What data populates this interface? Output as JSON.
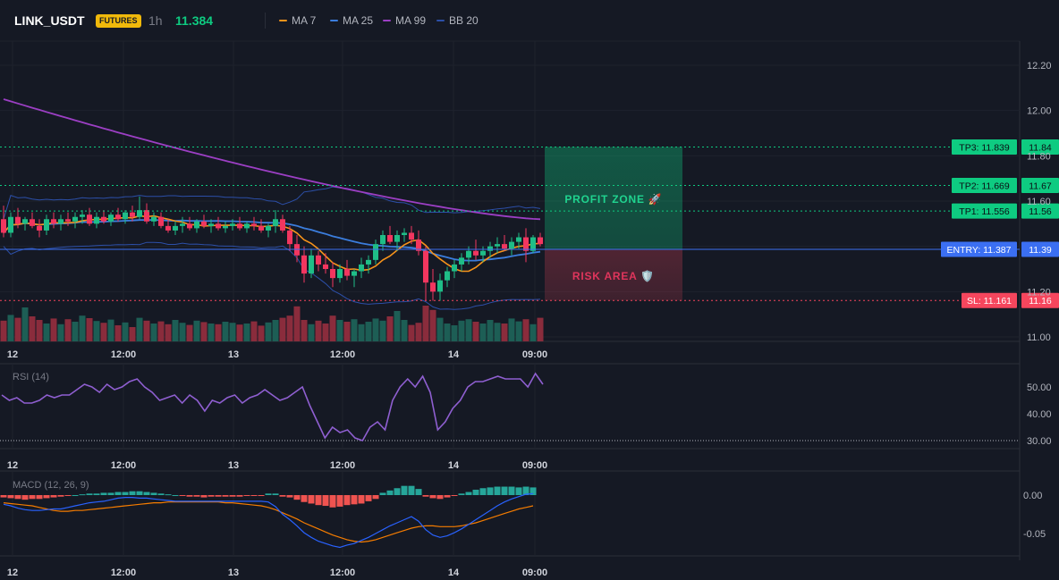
{
  "header": {
    "symbol": "LINK_USDT",
    "badge": "FUTURES",
    "timeframe": "1h",
    "price": "11.384",
    "legend": [
      {
        "name": "MA 7",
        "color": "#f7931a"
      },
      {
        "name": "MA 25",
        "color": "#3b7ddd"
      },
      {
        "name": "MA 99",
        "color": "#9c3fc4"
      },
      {
        "name": "BB 20",
        "color": "#2c4fa8"
      }
    ]
  },
  "colors": {
    "up": "#1fbd87",
    "down": "#f2365f",
    "vol_up": "#1d5e55",
    "vol_down": "#8a2c3c",
    "tp": "#0ecb81",
    "sl": "#f6465d",
    "entry": "#3b6ff2",
    "rsi": "#8f5fd1",
    "macd": "#2962ff",
    "signal": "#f57c00",
    "hist_up": "#26a69a",
    "hist_down": "#ef5350"
  },
  "zones": {
    "profit_label": "PROFIT ZONE 🚀",
    "risk_label": "RISK AREA 🛡️"
  },
  "levels": [
    {
      "name": "TP3",
      "label": "TP3: 11.839",
      "axis": "11.84",
      "value": 11.839,
      "kind": "tp"
    },
    {
      "name": "TP2",
      "label": "TP2: 11.669",
      "axis": "11.67",
      "value": 11.669,
      "kind": "tp"
    },
    {
      "name": "TP1",
      "label": "TP1: 11.556",
      "axis": "11.56",
      "value": 11.556,
      "kind": "tp"
    },
    {
      "name": "ENTRY",
      "label": "ENTRY: 11.387",
      "axis": "11.39",
      "value": 11.387,
      "kind": "entry"
    },
    {
      "name": "SL",
      "label": "SL: 11.161",
      "axis": "11.16",
      "value": 11.161,
      "kind": "sl"
    }
  ],
  "chart_data": [
    {
      "type": "candlestick",
      "title": "LINK_USDT 1h",
      "x_ticks": [
        "12",
        "12:00",
        "13",
        "12:00",
        "14",
        "09:00"
      ],
      "y_ticks": [
        "12.20",
        "12.00",
        "11.80",
        "11.60",
        "11.20",
        "11.00"
      ],
      "ylim": [
        11.0,
        12.2
      ],
      "candles": [
        [
          11.52,
          11.58,
          11.44,
          11.46
        ],
        [
          11.46,
          11.55,
          11.44,
          11.53
        ],
        [
          11.53,
          11.57,
          11.48,
          11.5
        ],
        [
          11.5,
          11.53,
          11.47,
          11.52
        ],
        [
          11.52,
          11.55,
          11.48,
          11.49
        ],
        [
          11.49,
          11.52,
          11.44,
          11.47
        ],
        [
          11.47,
          11.54,
          11.45,
          11.52
        ],
        [
          11.52,
          11.55,
          11.48,
          11.5
        ],
        [
          11.5,
          11.54,
          11.47,
          11.52
        ],
        [
          11.52,
          11.55,
          11.49,
          11.51
        ],
        [
          11.51,
          11.55,
          11.48,
          11.53
        ],
        [
          11.53,
          11.56,
          11.5,
          11.54
        ],
        [
          11.54,
          11.57,
          11.49,
          11.5
        ],
        [
          11.5,
          11.55,
          11.48,
          11.53
        ],
        [
          11.53,
          11.56,
          11.5,
          11.51
        ],
        [
          11.51,
          11.55,
          11.49,
          11.54
        ],
        [
          11.54,
          11.57,
          11.51,
          11.52
        ],
        [
          11.52,
          11.56,
          11.5,
          11.55
        ],
        [
          11.55,
          11.58,
          11.51,
          11.53
        ],
        [
          11.53,
          11.62,
          11.52,
          11.56
        ],
        [
          11.56,
          11.59,
          11.5,
          11.51
        ],
        [
          11.51,
          11.55,
          11.49,
          11.53
        ],
        [
          11.53,
          11.55,
          11.48,
          11.49
        ],
        [
          11.49,
          11.52,
          11.46,
          11.47
        ],
        [
          11.47,
          11.51,
          11.45,
          11.49
        ],
        [
          11.49,
          11.53,
          11.46,
          11.5
        ],
        [
          11.5,
          11.53,
          11.47,
          11.48
        ],
        [
          11.48,
          11.52,
          11.46,
          11.51
        ],
        [
          11.51,
          11.54,
          11.48,
          11.49
        ],
        [
          11.49,
          11.52,
          11.46,
          11.5
        ],
        [
          11.5,
          11.53,
          11.47,
          11.48
        ],
        [
          11.48,
          11.51,
          11.46,
          11.49
        ],
        [
          11.49,
          11.52,
          11.47,
          11.5
        ],
        [
          11.5,
          11.53,
          11.47,
          11.48
        ],
        [
          11.48,
          11.51,
          11.46,
          11.5
        ],
        [
          11.5,
          11.53,
          11.47,
          11.49
        ],
        [
          11.49,
          11.52,
          11.46,
          11.47
        ],
        [
          11.47,
          11.5,
          11.44,
          11.49
        ],
        [
          11.49,
          11.56,
          11.46,
          11.52
        ],
        [
          11.52,
          11.54,
          11.46,
          11.47
        ],
        [
          11.47,
          11.49,
          11.38,
          11.41
        ],
        [
          11.41,
          11.45,
          11.33,
          11.36
        ],
        [
          11.36,
          11.4,
          11.24,
          11.28
        ],
        [
          11.28,
          11.39,
          11.26,
          11.36
        ],
        [
          11.36,
          11.38,
          11.29,
          11.32
        ],
        [
          11.32,
          11.37,
          11.28,
          11.3
        ],
        [
          11.3,
          11.33,
          11.22,
          11.26
        ],
        [
          11.26,
          11.32,
          11.24,
          11.3
        ],
        [
          11.3,
          11.34,
          11.25,
          11.27
        ],
        [
          11.27,
          11.3,
          11.22,
          11.29
        ],
        [
          11.29,
          11.35,
          11.26,
          11.32
        ],
        [
          11.32,
          11.36,
          11.28,
          11.34
        ],
        [
          11.34,
          11.43,
          11.32,
          11.41
        ],
        [
          11.41,
          11.47,
          11.38,
          11.45
        ],
        [
          11.45,
          11.49,
          11.41,
          11.42
        ],
        [
          11.42,
          11.47,
          11.38,
          11.45
        ],
        [
          11.45,
          11.48,
          11.42,
          11.46
        ],
        [
          11.46,
          11.49,
          11.41,
          11.43
        ],
        [
          11.43,
          11.47,
          11.36,
          11.38
        ],
        [
          11.38,
          11.4,
          11.16,
          11.24
        ],
        [
          11.24,
          11.3,
          11.16,
          11.2
        ],
        [
          11.2,
          11.28,
          11.16,
          11.25
        ],
        [
          11.25,
          11.31,
          11.22,
          11.29
        ],
        [
          11.29,
          11.34,
          11.26,
          11.32
        ],
        [
          11.32,
          11.37,
          11.29,
          11.35
        ],
        [
          11.35,
          11.4,
          11.32,
          11.38
        ],
        [
          11.38,
          11.43,
          11.34,
          11.36
        ],
        [
          11.36,
          11.4,
          11.33,
          11.38
        ],
        [
          11.38,
          11.42,
          11.35,
          11.4
        ],
        [
          11.4,
          11.44,
          11.37,
          11.41
        ],
        [
          11.41,
          11.45,
          11.38,
          11.39
        ],
        [
          11.39,
          11.44,
          11.36,
          11.42
        ],
        [
          11.42,
          11.46,
          11.39,
          11.44
        ],
        [
          11.44,
          11.48,
          11.33,
          11.38
        ],
        [
          11.38,
          11.45,
          11.37,
          11.44
        ],
        [
          11.44,
          11.46,
          11.4,
          11.41
        ]
      ],
      "volume": [
        58,
        74,
        66,
        95,
        70,
        60,
        50,
        64,
        48,
        62,
        55,
        72,
        65,
        57,
        52,
        61,
        45,
        53,
        40,
        66,
        58,
        50,
        56,
        48,
        60,
        52,
        46,
        58,
        54,
        50,
        48,
        55,
        52,
        47,
        50,
        56,
        44,
        53,
        60,
        66,
        72,
        98,
        60,
        48,
        58,
        50,
        72,
        60,
        55,
        62,
        48,
        55,
        64,
        58,
        70,
        85,
        60,
        46,
        52,
        100,
        88,
        66,
        50,
        45,
        58,
        62,
        55,
        50,
        60,
        52,
        50,
        64,
        56,
        62,
        48,
        66
      ],
      "ma7_last": 11.42,
      "ma25_last": 11.38,
      "ma99_last": 11.52
    },
    {
      "type": "line",
      "title": "RSI (14)",
      "y_ticks": [
        "50.00",
        "40.00",
        "30.00"
      ],
      "ylim": [
        28,
        58
      ],
      "values": [
        47,
        45,
        46,
        44,
        44,
        45,
        47,
        46,
        47,
        47,
        49,
        51,
        50,
        48,
        51,
        49,
        50,
        52,
        53,
        50,
        48,
        45,
        46,
        47,
        44,
        47,
        45,
        41,
        45,
        44,
        46,
        47,
        44,
        46,
        47,
        49,
        47,
        45,
        46,
        48,
        50,
        43,
        37,
        31,
        35,
        33,
        34,
        31,
        30,
        35,
        37,
        34,
        45,
        50,
        53,
        50,
        54,
        48,
        34,
        37,
        42,
        45,
        50,
        52,
        52,
        53,
        54,
        53,
        53,
        53,
        50,
        55,
        51
      ],
      "oversold": 30
    },
    {
      "type": "bar",
      "title": "MACD (12, 26, 9)",
      "y_ticks": [
        "0.00",
        "-0.05"
      ],
      "ylim": [
        -0.075,
        0.02
      ],
      "histogram": [
        -0.003,
        -0.004,
        -0.005,
        -0.006,
        -0.005,
        -0.005,
        -0.004,
        -0.003,
        -0.002,
        -0.001,
        0.0,
        0.001,
        0.002,
        0.002,
        0.003,
        0.003,
        0.004,
        0.004,
        0.005,
        0.005,
        0.004,
        0.003,
        0.002,
        0.001,
        0.0,
        -0.001,
        -0.002,
        -0.002,
        -0.003,
        -0.002,
        -0.002,
        -0.002,
        -0.002,
        -0.002,
        -0.001,
        -0.001,
        -0.001,
        0.002,
        0.002,
        -0.002,
        -0.003,
        -0.006,
        -0.009,
        -0.011,
        -0.013,
        -0.014,
        -0.016,
        -0.015,
        -0.013,
        -0.012,
        -0.011,
        -0.008,
        -0.005,
        0.003,
        0.006,
        0.009,
        0.012,
        0.012,
        0.008,
        -0.002,
        -0.004,
        -0.005,
        -0.003,
        -0.001,
        0.002,
        0.004,
        0.007,
        0.009,
        0.01,
        0.011,
        0.011,
        0.011,
        0.01,
        0.011,
        0.01
      ],
      "macd": [
        -0.012,
        -0.014,
        -0.017,
        -0.019,
        -0.02,
        -0.02,
        -0.019,
        -0.018,
        -0.018,
        -0.016,
        -0.014,
        -0.012,
        -0.01,
        -0.009,
        -0.008,
        -0.006,
        -0.004,
        -0.003,
        -0.003,
        -0.004,
        -0.004,
        -0.005,
        -0.006,
        -0.007,
        -0.008,
        -0.008,
        -0.008,
        -0.008,
        -0.008,
        -0.008,
        -0.008,
        -0.008,
        -0.008,
        -0.008,
        -0.008,
        -0.008,
        -0.008,
        -0.009,
        -0.015,
        -0.025,
        -0.032,
        -0.04,
        -0.049,
        -0.055,
        -0.06,
        -0.063,
        -0.066,
        -0.068,
        -0.065,
        -0.063,
        -0.059,
        -0.055,
        -0.05,
        -0.045,
        -0.04,
        -0.036,
        -0.032,
        -0.028,
        -0.034,
        -0.045,
        -0.052,
        -0.055,
        -0.053,
        -0.049,
        -0.044,
        -0.038,
        -0.032,
        -0.026,
        -0.02,
        -0.014,
        -0.009,
        -0.005,
        -0.002,
        0.001,
        0.002
      ],
      "signal": [
        -0.01,
        -0.011,
        -0.012,
        -0.013,
        -0.014,
        -0.016,
        -0.018,
        -0.02,
        -0.021,
        -0.021,
        -0.02,
        -0.02,
        -0.019,
        -0.018,
        -0.017,
        -0.016,
        -0.015,
        -0.014,
        -0.013,
        -0.012,
        -0.011,
        -0.01,
        -0.01,
        -0.009,
        -0.009,
        -0.009,
        -0.009,
        -0.009,
        -0.009,
        -0.009,
        -0.009,
        -0.01,
        -0.01,
        -0.011,
        -0.012,
        -0.013,
        -0.014,
        -0.016,
        -0.019,
        -0.023,
        -0.027,
        -0.031,
        -0.036,
        -0.04,
        -0.044,
        -0.048,
        -0.052,
        -0.055,
        -0.058,
        -0.06,
        -0.061,
        -0.06,
        -0.058,
        -0.055,
        -0.052,
        -0.049,
        -0.046,
        -0.043,
        -0.041,
        -0.04,
        -0.04,
        -0.041,
        -0.041,
        -0.041,
        -0.04,
        -0.038,
        -0.036,
        -0.033,
        -0.03,
        -0.027,
        -0.024,
        -0.021,
        -0.018,
        -0.016,
        -0.014
      ]
    }
  ]
}
